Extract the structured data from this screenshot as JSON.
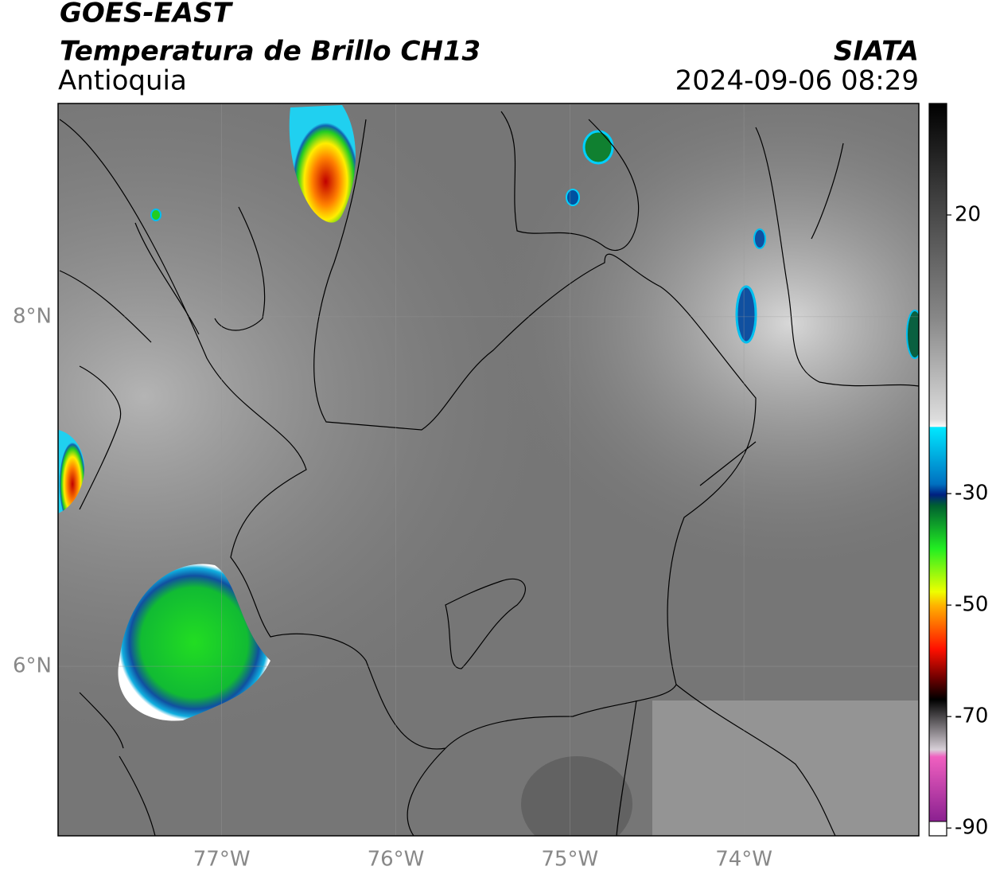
{
  "header": {
    "title": "GOES-EAST",
    "subtitle": "Temperatura de Brillo CH13",
    "region": "Antioquia",
    "source": "SIATA",
    "datetime": "2024-09-06 08:29"
  },
  "map": {
    "xlim": [
      -77.94,
      -72.995
    ],
    "ylim": [
      5.03,
      9.22
    ],
    "xticks": [
      {
        "value": -77,
        "label": "77°W"
      },
      {
        "value": -76,
        "label": "76°W"
      },
      {
        "value": -75,
        "label": "75°W"
      },
      {
        "value": -74,
        "label": "74°W"
      }
    ],
    "yticks": [
      {
        "value": 8,
        "label": "8°N"
      },
      {
        "value": 6,
        "label": "6°N"
      }
    ],
    "grid": true
  },
  "colorbar": {
    "lim": [
      -91.4,
      40
    ],
    "ticks": [
      20,
      -30,
      -50,
      -70,
      -90
    ]
  }
}
